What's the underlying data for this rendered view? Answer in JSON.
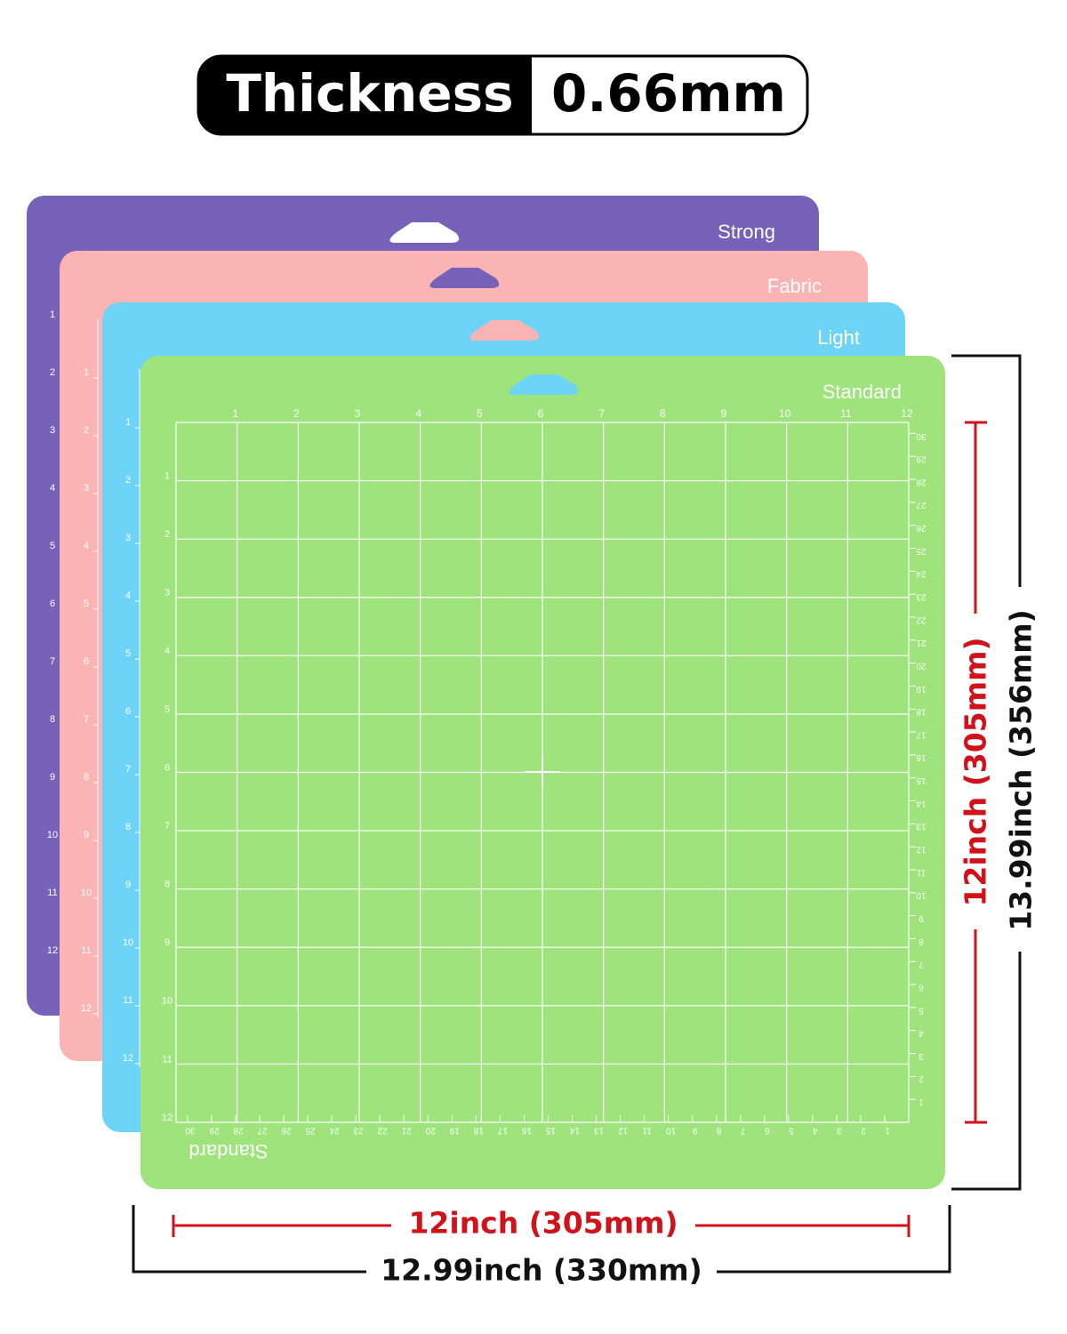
{
  "header": {
    "label": "Thickness",
    "value": "0.66mm"
  },
  "mats": [
    {
      "name": "Strong",
      "color": "#7662b8"
    },
    {
      "name": "Fabric",
      "color": "#fbb4b4"
    },
    {
      "name": "Light",
      "color": "#6dd3f7"
    },
    {
      "name": "Standard",
      "color": "#9ee37b"
    }
  ],
  "rulers": {
    "inch": [
      "1",
      "2",
      "3",
      "4",
      "5",
      "6",
      "7",
      "8",
      "9",
      "10",
      "11",
      "12"
    ],
    "cm": [
      "1",
      "2",
      "3",
      "4",
      "5",
      "6",
      "7",
      "8",
      "9",
      "10",
      "11",
      "12",
      "13",
      "14",
      "15",
      "16",
      "17",
      "18",
      "19",
      "20",
      "21",
      "22",
      "23",
      "24",
      "25",
      "26",
      "27",
      "28",
      "29",
      "30"
    ]
  },
  "dimensions": {
    "inner_width": "12inch (305mm)",
    "outer_width": "12.99inch (330mm)",
    "inner_height": "12inch (305mm)",
    "outer_height": "13.99inch (356mm)"
  }
}
